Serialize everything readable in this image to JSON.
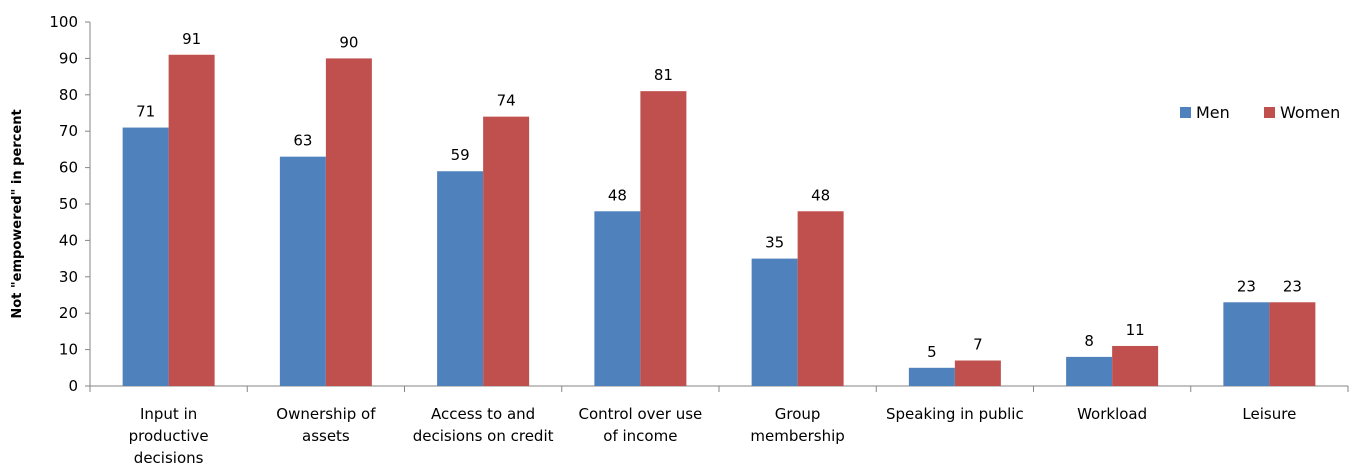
{
  "chart_data": {
    "type": "bar",
    "title": "",
    "xlabel": "",
    "ylabel": "Not \"empowered\" in percent",
    "ylim": [
      0,
      100
    ],
    "yticks": [
      0,
      10,
      20,
      30,
      40,
      50,
      60,
      70,
      80,
      90,
      100
    ],
    "grid": false,
    "legend": "right",
    "categories": [
      [
        "Input in",
        "productive",
        "decisions"
      ],
      [
        "Ownership of",
        "assets"
      ],
      [
        "Access to and",
        "decisions on credit"
      ],
      [
        "Control over use",
        "of income"
      ],
      [
        "Group",
        "membership"
      ],
      [
        "Speaking in public"
      ],
      [
        "Workload"
      ],
      [
        "Leisure"
      ]
    ],
    "series": [
      {
        "name": "Men",
        "color": "#4f81bd",
        "values": [
          71,
          63,
          59,
          48,
          35,
          5,
          8,
          23
        ]
      },
      {
        "name": "Women",
        "color": "#c0504d",
        "values": [
          91,
          90,
          74,
          81,
          48,
          7,
          11,
          23
        ]
      }
    ]
  }
}
